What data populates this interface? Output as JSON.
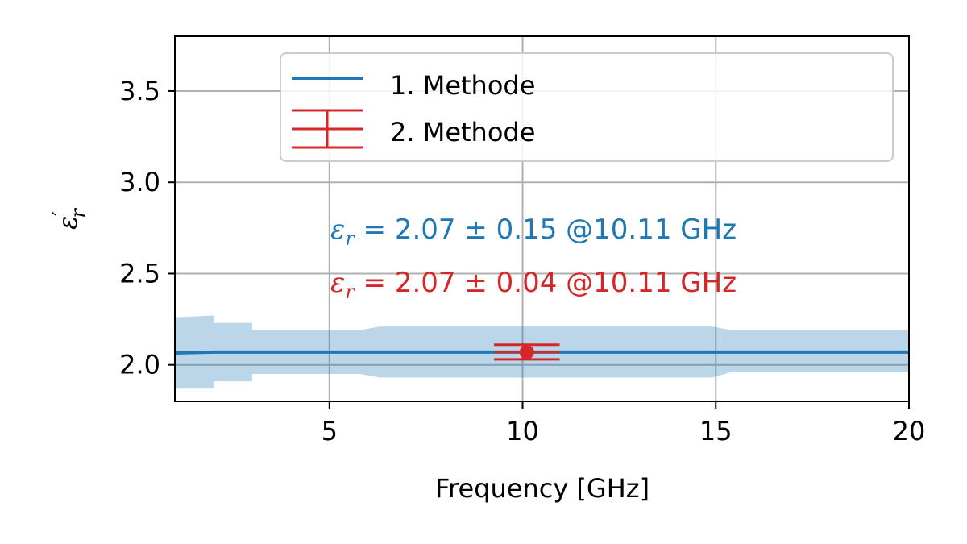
{
  "chart_data": {
    "type": "line",
    "xlabel": "Frequency [GHz]",
    "ylabel": "ε′r",
    "ylabel_symbol": "ε",
    "ylabel_prime": "′",
    "ylabel_sub": "r",
    "xlim": [
      1,
      20
    ],
    "ylim": [
      1.8,
      3.8
    ],
    "xticks": [
      5,
      10,
      15,
      20
    ],
    "yticks": [
      2.0,
      2.5,
      3.0,
      3.5
    ],
    "xtick_labels": [
      "5",
      "10",
      "15",
      "20"
    ],
    "ytick_labels": [
      "2.0",
      "2.5",
      "3.0",
      "3.5"
    ],
    "grid": true,
    "legend_position": "upper center",
    "series": [
      {
        "name": "1. Methode",
        "color": "#1f77b4",
        "band_color": "#1f77b4",
        "x": [
          1,
          2,
          3,
          5,
          6,
          10,
          15,
          20
        ],
        "y": [
          2.065,
          2.07,
          2.07,
          2.07,
          2.07,
          2.07,
          2.07,
          2.07
        ],
        "band": {
          "x": [
            1,
            2.0,
            2.0,
            3.0,
            3.0,
            5.8,
            6.3,
            14.9,
            15.4,
            20
          ],
          "upper": [
            2.26,
            2.27,
            2.23,
            2.23,
            2.19,
            2.19,
            2.21,
            2.21,
            2.19,
            2.19
          ],
          "lower": [
            1.87,
            1.87,
            1.91,
            1.91,
            1.95,
            1.95,
            1.93,
            1.93,
            1.96,
            1.96
          ]
        }
      },
      {
        "name": "2. Methode",
        "color": "#d62728",
        "type": "errorbar",
        "x": 10.11,
        "y": 2.07,
        "xerr": 0.85,
        "yerr": 0.04
      }
    ],
    "annotations": [
      {
        "symbol": "ε",
        "sub": "r",
        "text": " = 2.07 ± 0.15 @10.11 GHz",
        "color": "#1f77b4"
      },
      {
        "symbol": "ε",
        "sub": "r",
        "text": " = 2.07 ± 0.04 @10.11 GHz",
        "color": "#d62728"
      }
    ]
  }
}
